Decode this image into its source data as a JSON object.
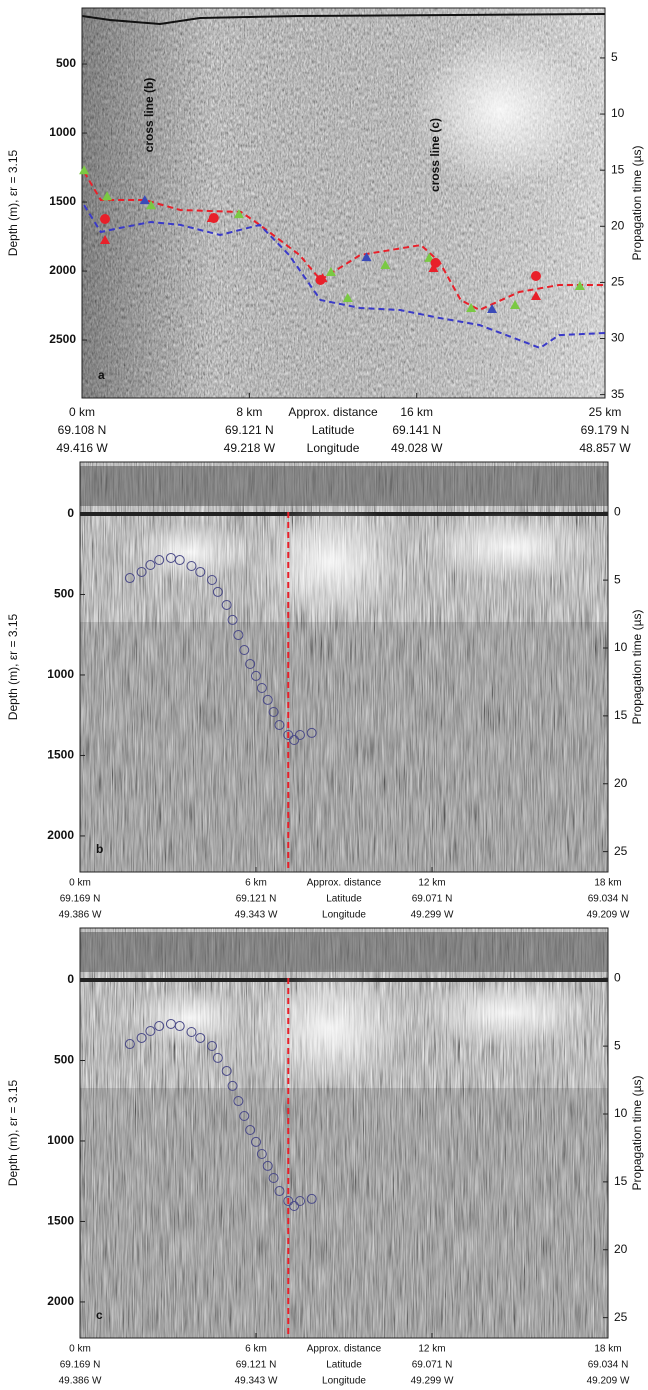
{
  "chart_data": [
    {
      "type": "line",
      "panel_label": "a",
      "y_label": "Depth (m), εr = 3.15",
      "y2_label": "Propagation time (µs)",
      "x_label": "Approx. distance",
      "lat_label": "Latitude",
      "lon_label": "Longitude",
      "annotations": [
        "cross line (b)",
        "cross line (c)"
      ],
      "xlim": [
        0,
        25
      ],
      "ylim": [
        94,
        2920
      ],
      "y2lim": [
        0.55,
        35.3
      ],
      "y_reversed": true,
      "xticks": [
        {
          "value": 0,
          "label": "0 km"
        },
        {
          "value": 8,
          "label": "8 km"
        },
        {
          "value": 16,
          "label": "16 km"
        },
        {
          "value": 25,
          "label": "25 km"
        }
      ],
      "lat_labels": [
        "69.108 N",
        "69.121 N",
        "69.141 N",
        "69.179 N"
      ],
      "lon_labels": [
        "49.416 W",
        "49.218 W",
        "49.028 W",
        "48.857 W"
      ],
      "yticks": [
        500,
        1000,
        1500,
        2000,
        2500
      ],
      "y2ticks": [
        5,
        10,
        15,
        20,
        25,
        30,
        35
      ],
      "series": [
        {
          "color": "#e8202a",
          "x": [
            0.1,
            0.9,
            3.0,
            4.7,
            7.6,
            8.5,
            10.4,
            11.4,
            13.3,
            16.2,
            17.1,
            18.1,
            19.0,
            20.9,
            22.8,
            25.0
          ],
          "values": [
            1282,
            1485,
            1485,
            1558,
            1572,
            1666,
            1884,
            2065,
            1884,
            1811,
            1935,
            2210,
            2282,
            2152,
            2101,
            2101
          ]
        },
        {
          "color": "#3a3ac8",
          "x": [
            0.1,
            0.9,
            1.8,
            3.3,
            4.7,
            6.6,
            8.5,
            9.9,
            11.4,
            13.3,
            15.2,
            17.1,
            19.0,
            20.9,
            21.9,
            22.8,
            25.0
          ],
          "values": [
            1522,
            1717,
            1688,
            1645,
            1666,
            1739,
            1666,
            1884,
            2210,
            2268,
            2282,
            2340,
            2391,
            2500,
            2558,
            2464,
            2449
          ]
        }
      ],
      "markers": [
        {
          "shape": "triangle",
          "color": "#7ac943",
          "x": [
            0.1,
            1.2,
            3.3,
            7.5,
            11.9,
            12.7,
            14.5,
            16.6,
            18.6,
            20.7,
            23.8
          ],
          "values": [
            1270,
            1458,
            1523,
            1588,
            2007,
            2195,
            1956,
            1905,
            2268,
            2246,
            2108
          ]
        },
        {
          "shape": "triangle",
          "color": "#3a4ab8",
          "x": [
            3.0,
            13.6,
            19.6
          ],
          "values": [
            1486,
            1899,
            2275
          ]
        },
        {
          "shape": "triangle",
          "color": "#e8202a",
          "x": [
            1.1,
            6.2,
            11.5,
            16.8,
            21.7
          ],
          "values": [
            1775,
            1616,
            2051,
            1978,
            2181
          ]
        },
        {
          "shape": "circle",
          "color": "#e8202a",
          "x": [
            1.1,
            6.3,
            11.4,
            16.9,
            21.7
          ],
          "values": [
            1623,
            1616,
            2065,
            1941,
            2036
          ]
        }
      ]
    },
    {
      "type": "line",
      "panel_label": "b",
      "y_label": "Depth (m), εr = 3.15",
      "y2_label": "Propagation time (µs)",
      "x_label": "Approx. distance",
      "lat_label": "Latitude",
      "lon_label": "Longitude",
      "xlim": [
        0,
        18
      ],
      "ylim": [
        -323,
        2224
      ],
      "y2lim": [
        -3.7,
        26.5
      ],
      "y_reversed": true,
      "xticks": [
        {
          "value": 0,
          "label": "0 km"
        },
        {
          "value": 6,
          "label": "6 km"
        },
        {
          "value": 12,
          "label": "12 km"
        },
        {
          "value": 18,
          "label": "18 km"
        }
      ],
      "lat_labels": [
        "69.169 N",
        "69.121 N",
        "69.071 N",
        "69.034 N"
      ],
      "lon_labels": [
        "49.386 W",
        "49.343 W",
        "49.299 W",
        "49.209 W"
      ],
      "yticks": [
        0,
        500,
        1000,
        1500,
        2000
      ],
      "y2ticks": [
        0,
        5,
        10,
        15,
        20,
        25
      ],
      "vline": {
        "x": 7.1,
        "color": "#e8202a"
      },
      "markers": [
        {
          "shape": "circle",
          "color": "#4a4a88",
          "x": [
            1.7,
            2.1,
            2.4,
            2.7,
            3.1,
            3.4,
            3.8,
            4.1,
            4.5,
            4.7,
            5.0,
            5.2,
            5.4,
            5.6,
            5.8,
            6.0,
            6.2,
            6.4,
            6.6,
            6.8,
            7.1,
            7.3,
            7.5,
            7.9
          ],
          "values": [
            398,
            360,
            317,
            286,
            273,
            286,
            323,
            360,
            410,
            484,
            565,
            658,
            752,
            845,
            932,
            1006,
            1081,
            1155,
            1230,
            1311,
            1373,
            1404,
            1373,
            1360
          ]
        }
      ]
    },
    {
      "type": "line",
      "panel_label": "c",
      "y_label": "Depth (m), εr = 3.15",
      "y2_label": "Propagation time (µs)",
      "x_label": "Approx. distance",
      "lat_label": "Latitude",
      "lon_label": "Longitude",
      "xlim": [
        0,
        18
      ],
      "ylim": [
        -323,
        2224
      ],
      "y2lim": [
        -3.7,
        26.5
      ],
      "y_reversed": true,
      "xticks": [
        {
          "value": 0,
          "label": "0 km"
        },
        {
          "value": 6,
          "label": "6 km"
        },
        {
          "value": 12,
          "label": "12 km"
        },
        {
          "value": 18,
          "label": "18 km"
        }
      ],
      "lat_labels": [
        "69.169 N",
        "69.121 N",
        "69.071 N",
        "69.034 N"
      ],
      "lon_labels": [
        "49.386 W",
        "49.343 W",
        "49.299 W",
        "49.209 W"
      ],
      "yticks": [
        0,
        500,
        1000,
        1500,
        2000
      ],
      "y2ticks": [
        0,
        5,
        10,
        15,
        20,
        25
      ],
      "vline": {
        "x": 7.1,
        "color": "#e8202a"
      },
      "markers": [
        {
          "shape": "circle",
          "color": "#4a4a88",
          "x": [
            1.7,
            2.1,
            2.4,
            2.7,
            3.1,
            3.4,
            3.8,
            4.1,
            4.5,
            4.7,
            5.0,
            5.2,
            5.4,
            5.6,
            5.8,
            6.0,
            6.2,
            6.4,
            6.6,
            6.8,
            7.1,
            7.3,
            7.5,
            7.9
          ],
          "values": [
            398,
            360,
            317,
            286,
            273,
            286,
            323,
            360,
            410,
            484,
            565,
            658,
            752,
            845,
            932,
            1006,
            1081,
            1155,
            1230,
            1311,
            1373,
            1404,
            1373,
            1360
          ]
        }
      ]
    }
  ]
}
